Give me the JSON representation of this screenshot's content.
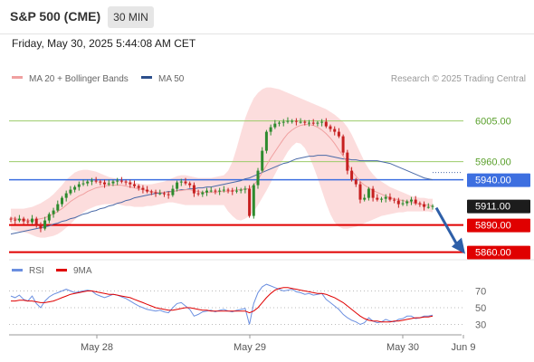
{
  "header": {
    "title": "S&P 500 (CME)",
    "timeframe": "30 MIN",
    "timestamp": "Friday, May 30, 2025 5:44:08 AM CET"
  },
  "legend": {
    "ma20": "MA 20 + Bollinger Bands",
    "ma50": "MA 50",
    "source": "Research © 2025 Trading Central",
    "rsi": "RSI",
    "rsi_ma": "9MA"
  },
  "colors": {
    "ma20": "#f0a0a0",
    "ma50": "#4a6aa8",
    "bollinger_fill": "#fbd2d2",
    "resistance": "#9ccc6a",
    "current_resistance": "#3d6fe0",
    "support": "#e00000",
    "price_tag": "#1c1c1c",
    "arrow": "#2e5fa8",
    "rsi": "#6b8fe0",
    "rsi_ma": "#e00000"
  },
  "chart_data": [
    {
      "type": "candlestick",
      "instrument": "S&P 500 (CME)",
      "interval": "30 MIN",
      "ylim": [
        5845,
        6030
      ],
      "x_ticks": [
        "May 28",
        "May 29",
        "May 30",
        "Jun 9"
      ],
      "price_levels": [
        {
          "label": "6005.00",
          "value": 6005,
          "kind": "resistance"
        },
        {
          "label": "5960.00",
          "value": 5960,
          "kind": "resistance"
        },
        {
          "label": "5940.00",
          "value": 5940,
          "kind": "resistance"
        },
        {
          "label": "5911.00",
          "value": 5911,
          "kind": "last"
        },
        {
          "label": "5890.00",
          "value": 5890,
          "kind": "support"
        },
        {
          "label": "5860.00",
          "value": 5860,
          "kind": "support"
        }
      ],
      "close": [
        5896,
        5895,
        5897,
        5894,
        5893,
        5897,
        5890,
        5886,
        5895,
        5902,
        5906,
        5913,
        5920,
        5925,
        5929,
        5932,
        5935,
        5936,
        5938,
        5939,
        5938,
        5937,
        5935,
        5936,
        5938,
        5939,
        5938,
        5937,
        5935,
        5933,
        5931,
        5929,
        5927,
        5926,
        5925,
        5925,
        5924,
        5923,
        5930,
        5937,
        5938,
        5936,
        5934,
        5925,
        5924,
        5926,
        5928,
        5928,
        5927,
        5928,
        5929,
        5928,
        5927,
        5928,
        5929,
        5930,
        5900,
        5934,
        5950,
        5972,
        5993,
        5998,
        6002,
        6003,
        6004,
        6005,
        6005,
        6004,
        6004,
        6003,
        6003,
        6002,
        6003,
        6004,
        5999,
        5996,
        5993,
        5988,
        5970,
        5950,
        5940,
        5935,
        5918,
        5920,
        5930,
        5920,
        5918,
        5919,
        5921,
        5918,
        5917,
        5913,
        5914,
        5916,
        5918,
        5914,
        5913,
        5910,
        5910,
        5911
      ],
      "ma20": [
        5898,
        5897,
        5896,
        5896,
        5895,
        5895,
        5896,
        5897,
        5898,
        5900,
        5902,
        5905,
        5908,
        5912,
        5916,
        5919,
        5922,
        5924,
        5927,
        5929,
        5931,
        5932,
        5933,
        5934,
        5934,
        5934,
        5934,
        5933,
        5932,
        5931,
        5930,
        5929,
        5928,
        5927,
        5926,
        5926,
        5926,
        5926,
        5927,
        5928,
        5928,
        5929,
        5929,
        5928,
        5927,
        5926,
        5926,
        5926,
        5926,
        5927,
        5927,
        5927,
        5928,
        5929,
        5929,
        5930,
        5930,
        5934,
        5940,
        5948,
        5956,
        5964,
        5971,
        5978,
        5985,
        5991,
        5995,
        5998,
        6000,
        6001,
        6001,
        6000,
        5998,
        5995,
        5991,
        5986,
        5980,
        5973,
        5966,
        5958,
        5950,
        5944,
        5938,
        5934,
        5931,
        5928,
        5926,
        5924,
        5922,
        5920,
        5919,
        5918,
        5917,
        5916,
        5915,
        5914,
        5913,
        5912,
        5912,
        5911
      ],
      "ma50": [
        5880,
        5881,
        5882,
        5883,
        5884,
        5885,
        5886,
        5887,
        5888,
        5889,
        5891,
        5892,
        5894,
        5895,
        5897,
        5898,
        5900,
        5902,
        5903,
        5905,
        5906,
        5908,
        5909,
        5911,
        5912,
        5914,
        5915,
        5917,
        5918,
        5920,
        5921,
        5922,
        5923,
        5924,
        5925,
        5925,
        5926,
        5927,
        5927,
        5928,
        5929,
        5929,
        5930,
        5930,
        5931,
        5931,
        5932,
        5932,
        5933,
        5934,
        5935,
        5936,
        5937,
        5938,
        5939,
        5941,
        5942,
        5944,
        5946,
        5948,
        5950,
        5952,
        5954,
        5956,
        5958,
        5959,
        5961,
        5963,
        5964,
        5965,
        5966,
        5966,
        5967,
        5967,
        5967,
        5966,
        5965,
        5964,
        5963,
        5963,
        5962,
        5962,
        5961,
        5961,
        5961,
        5961,
        5961,
        5960,
        5959,
        5958,
        5956,
        5954,
        5952,
        5950,
        5948,
        5946,
        5944,
        5942,
        5941,
        5940
      ],
      "upper_band": [
        5908,
        5908,
        5908,
        5908,
        5909,
        5910,
        5912,
        5914,
        5917,
        5920,
        5924,
        5929,
        5934,
        5940,
        5944,
        5948,
        5950,
        5951,
        5951,
        5950,
        5949,
        5947,
        5945,
        5943,
        5942,
        5941,
        5940,
        5939,
        5938,
        5937,
        5936,
        5935,
        5935,
        5935,
        5936,
        5937,
        5938,
        5940,
        5942,
        5944,
        5945,
        5945,
        5944,
        5943,
        5942,
        5942,
        5942,
        5942,
        5943,
        5944,
        5945,
        5950,
        5960,
        5975,
        5992,
        6008,
        6020,
        6030,
        6036,
        6040,
        6042,
        6042,
        6041,
        6040,
        6038,
        6036,
        6034,
        6032,
        6030,
        6028,
        6026,
        6024,
        6022,
        6020,
        6018,
        6015,
        6012,
        6008,
        6004,
        5998,
        5990,
        5980,
        5970,
        5960,
        5952,
        5946,
        5941,
        5938,
        5935,
        5932,
        5930,
        5928,
        5926,
        5924,
        5922,
        5921,
        5920,
        5920,
        5919,
        5919
      ],
      "lower_band": [
        5885,
        5884,
        5883,
        5882,
        5881,
        5879,
        5877,
        5876,
        5876,
        5877,
        5878,
        5880,
        5883,
        5887,
        5891,
        5896,
        5900,
        5904,
        5907,
        5909,
        5911,
        5912,
        5913,
        5913,
        5913,
        5913,
        5912,
        5911,
        5911,
        5910,
        5910,
        5910,
        5911,
        5911,
        5912,
        5913,
        5914,
        5915,
        5915,
        5914,
        5913,
        5912,
        5912,
        5912,
        5912,
        5912,
        5912,
        5912,
        5912,
        5912,
        5912,
        5905,
        5900,
        5896,
        5895,
        5897,
        5900,
        5905,
        5912,
        5920,
        5928,
        5937,
        5946,
        5955,
        5963,
        5971,
        5977,
        5981,
        5980,
        5975,
        5966,
        5955,
        5942,
        5928,
        5914,
        5902,
        5893,
        5888,
        5886,
        5886,
        5887,
        5888,
        5890,
        5892,
        5894,
        5896,
        5898,
        5900,
        5901,
        5902,
        5903,
        5904,
        5904,
        5905,
        5905,
        5905,
        5905,
        5905,
        5905,
        5904
      ],
      "projection": {
        "from": 5911,
        "to": 5860
      }
    },
    {
      "type": "line",
      "name": "RSI",
      "y_ticks": [
        70,
        50,
        30
      ],
      "ylim": [
        15,
        85
      ],
      "rsi": [
        64,
        62,
        65,
        60,
        58,
        64,
        55,
        50,
        58,
        63,
        66,
        68,
        70,
        72,
        70,
        68,
        69,
        70,
        71,
        70,
        66,
        64,
        62,
        64,
        66,
        65,
        63,
        61,
        58,
        55,
        52,
        50,
        48,
        47,
        46,
        47,
        45,
        44,
        50,
        55,
        56,
        52,
        48,
        40,
        42,
        45,
        46,
        47,
        45,
        47,
        48,
        46,
        45,
        47,
        48,
        49,
        30,
        55,
        68,
        75,
        78,
        76,
        74,
        72,
        70,
        71,
        72,
        69,
        68,
        66,
        67,
        65,
        66,
        67,
        60,
        56,
        52,
        48,
        42,
        38,
        35,
        33,
        30,
        32,
        38,
        34,
        32,
        33,
        36,
        34,
        33,
        36,
        37,
        40,
        40,
        37,
        38,
        40,
        40,
        41
      ],
      "rsi_ma": [
        58,
        58,
        59,
        59,
        58,
        58,
        57,
        56,
        56,
        57,
        58,
        60,
        62,
        64,
        66,
        67,
        68,
        69,
        70,
        70,
        69,
        68,
        67,
        66,
        66,
        65,
        64,
        63,
        62,
        60,
        58,
        56,
        54,
        52,
        50,
        49,
        48,
        47,
        47,
        48,
        49,
        50,
        50,
        49,
        48,
        47,
        47,
        46,
        46,
        46,
        46,
        46,
        46,
        46,
        46,
        46,
        44,
        46,
        50,
        56,
        62,
        67,
        71,
        73,
        74,
        74,
        73,
        72,
        71,
        70,
        69,
        68,
        67,
        67,
        66,
        64,
        62,
        59,
        56,
        52,
        48,
        44,
        40,
        37,
        35,
        34,
        34,
        33,
        33,
        33,
        34,
        34,
        35,
        36,
        37,
        38,
        38,
        39,
        39,
        40
      ]
    }
  ]
}
